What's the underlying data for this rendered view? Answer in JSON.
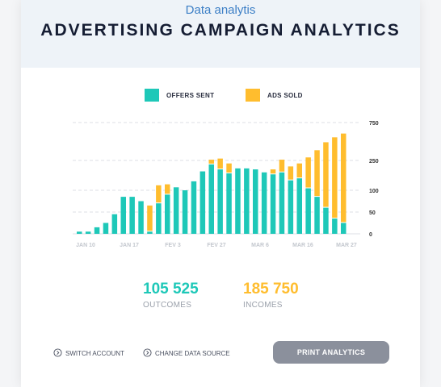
{
  "header": {
    "subtitle": "Data analytis",
    "title": "ADVERTISING CAMPAIGN ANALYTICS"
  },
  "colors": {
    "offers": "#1ec8b8",
    "ads": "#ffbd2e",
    "subtitle": "#3c7fc6",
    "button": "#8b909c"
  },
  "chart_data": {
    "type": "bar",
    "stacked": true,
    "legend": [
      "OFFERS SENT",
      "ADS SOLD"
    ],
    "legend_position": "top-center",
    "x_tick_labels": [
      "JAN 10",
      "JAN 17",
      "FEV 3",
      "FEV 27",
      "MAR 6",
      "MAR 16",
      "MAR 27"
    ],
    "y_tick_labels": [
      "750",
      "250",
      "100",
      "50",
      "0"
    ],
    "grid": true,
    "series": [
      {
        "name": "OFFERS SENT",
        "values": [
          5,
          5,
          15,
          25,
          45,
          85,
          85,
          75,
          5,
          70,
          90,
          115,
          100,
          145,
          195,
          230,
          205,
          185,
          210,
          210,
          205,
          190,
          180,
          190,
          150,
          160,
          110,
          85,
          60,
          35,
          25
        ]
      },
      {
        "name": "ADS SOLD",
        "values": [
          0,
          0,
          0,
          0,
          0,
          0,
          0,
          0,
          60,
          55,
          40,
          0,
          0,
          0,
          0,
          30,
          70,
          50,
          0,
          0,
          0,
          0,
          25,
          70,
          70,
          75,
          180,
          300,
          430,
          520,
          580
        ]
      }
    ]
  },
  "stats": {
    "outcomes_value": "105 525",
    "outcomes_label": "OUTCOMES",
    "incomes_value": "185 750",
    "incomes_label": "INCOMES"
  },
  "actions": {
    "switch_account": "SWITCH  ACCOUNT",
    "change_source": "CHANGE DATA SOURCE",
    "print": "PRINT ANALYTICS"
  }
}
